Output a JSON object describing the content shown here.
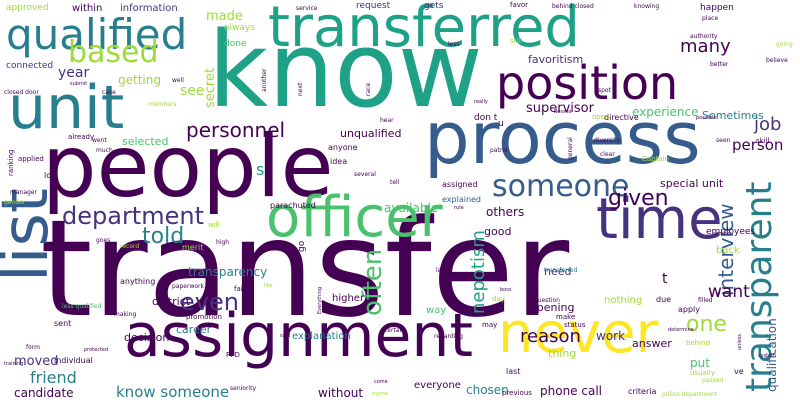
{
  "palette": {
    "dark_purple": "#440154",
    "indigo": "#46327e",
    "blue": "#365c8d",
    "teal_blue": "#277f8e",
    "teal": "#1fa187",
    "green": "#4ac16d",
    "light_green": "#a0da39",
    "yellow": "#fde725"
  },
  "words": [
    {
      "text": "transfer",
      "color": "#440154"
    },
    {
      "text": "know",
      "color": "#1fa187"
    },
    {
      "text": "people",
      "color": "#440154"
    },
    {
      "text": "process",
      "color": "#365c8d"
    },
    {
      "text": "transferred",
      "color": "#1fa187"
    },
    {
      "text": "assignment",
      "color": "#440154"
    },
    {
      "text": "unit",
      "color": "#277f8e"
    },
    {
      "text": "position",
      "color": "#440154"
    },
    {
      "text": "list",
      "color": "#365c8d"
    },
    {
      "text": "officer",
      "color": "#4ac16d"
    },
    {
      "text": "never",
      "color": "#fde725"
    },
    {
      "text": "time",
      "color": "#46327e"
    },
    {
      "text": "qualified",
      "color": "#277f8e"
    },
    {
      "text": "transparent",
      "color": "#277f8e"
    },
    {
      "text": "someone",
      "color": "#365c8d"
    },
    {
      "text": "based",
      "color": "#a0da39"
    },
    {
      "text": "department",
      "color": "#46327e"
    },
    {
      "text": "personnel",
      "color": "#440154"
    },
    {
      "text": "given",
      "color": "#440154"
    },
    {
      "text": "even",
      "color": "#46327e"
    },
    {
      "text": "one",
      "color": "#a0da39"
    },
    {
      "text": "told",
      "color": "#277f8e"
    },
    {
      "text": "interview",
      "color": "#365c8d"
    },
    {
      "text": "often",
      "color": "#4ac16d"
    },
    {
      "text": "nepotism",
      "color": "#1fa187"
    },
    {
      "text": "reason",
      "color": "#440154"
    },
    {
      "text": "many",
      "color": "#440154"
    },
    {
      "text": "job",
      "color": "#46327e"
    },
    {
      "text": "want",
      "color": "#440154"
    },
    {
      "text": "person",
      "color": "#440154"
    },
    {
      "text": "friend",
      "color": "#277f8e"
    },
    {
      "text": "know someone",
      "color": "#277f8e"
    },
    {
      "text": "year",
      "color": "#46327e"
    },
    {
      "text": "see",
      "color": "#a0da39"
    },
    {
      "text": "made",
      "color": "#a0da39"
    },
    {
      "text": "secret",
      "color": "#a0da39"
    },
    {
      "text": "supervisor",
      "color": "#440154"
    },
    {
      "text": "experience",
      "color": "#4ac16d"
    },
    {
      "text": "transparency",
      "color": "#277f8e"
    },
    {
      "text": "moved",
      "color": "#46327e"
    },
    {
      "text": "candidate",
      "color": "#440154"
    },
    {
      "text": "without",
      "color": "#440154"
    },
    {
      "text": "put",
      "color": "#4ac16d"
    },
    {
      "text": "work",
      "color": "#46327e"
    },
    {
      "text": "chosen",
      "color": "#277f8e"
    },
    {
      "text": "phone call",
      "color": "#440154"
    },
    {
      "text": "qualification",
      "color": "#365c8d"
    },
    {
      "text": "available",
      "color": "#4ac16d"
    },
    {
      "text": "others",
      "color": "#440154"
    },
    {
      "text": "getting",
      "color": "#a0da39"
    },
    {
      "text": "unqualified",
      "color": "#440154"
    },
    {
      "text": "selected",
      "color": "#4ac16d"
    },
    {
      "text": "special unit",
      "color": "#440154"
    },
    {
      "text": "Sometimes",
      "color": "#277f8e"
    },
    {
      "text": "favoritism",
      "color": "#46327e"
    },
    {
      "text": "opening",
      "color": "#440154"
    },
    {
      "text": "need",
      "color": "#46327e"
    },
    {
      "text": "good",
      "color": "#440154"
    },
    {
      "text": "career",
      "color": "#277f8e"
    },
    {
      "text": "decision",
      "color": "#440154"
    },
    {
      "text": "district",
      "color": "#440154"
    },
    {
      "text": "thing",
      "color": "#a0da39"
    },
    {
      "text": "answer",
      "color": "#440154"
    },
    {
      "text": "everyone",
      "color": "#440154"
    },
    {
      "text": "higher",
      "color": "#440154"
    },
    {
      "text": "explanation",
      "color": "#277f8e"
    },
    {
      "text": "nothing",
      "color": "#a0da39"
    },
    {
      "text": "way",
      "color": "#4ac16d"
    },
    {
      "text": "back",
      "color": "#a0da39"
    },
    {
      "text": "information",
      "color": "#46327e"
    },
    {
      "text": "within",
      "color": "#440154"
    },
    {
      "text": "approved",
      "color": "#a0da39"
    },
    {
      "text": "request",
      "color": "#46327e"
    },
    {
      "text": "gets",
      "color": "#46327e"
    },
    {
      "text": "happen",
      "color": "#440154"
    },
    {
      "text": "always",
      "color": "#a0da39"
    },
    {
      "text": "done",
      "color": "#4ac16d"
    },
    {
      "text": "connected",
      "color": "#46327e"
    },
    {
      "text": "employees",
      "color": "#440154"
    },
    {
      "text": "idea",
      "color": "#440154"
    },
    {
      "text": "anyone",
      "color": "#440154"
    },
    {
      "text": "assigned",
      "color": "#440154"
    },
    {
      "text": "explained",
      "color": "#365c8d"
    },
    {
      "text": "merit",
      "color": "#a0da39"
    },
    {
      "text": "parachuted",
      "color": "#440154"
    },
    {
      "text": "transferred",
      "color": "#277f8e"
    },
    {
      "text": "fair",
      "color": "#440154"
    },
    {
      "text": "promotion",
      "color": "#440154"
    },
    {
      "text": "anything",
      "color": "#440154"
    },
    {
      "text": "right",
      "color": "#440154"
    },
    {
      "text": "sent",
      "color": "#440154"
    },
    {
      "text": "individual",
      "color": "#440154"
    },
    {
      "text": "PPD",
      "color": "#440154"
    },
    {
      "text": "last",
      "color": "#440154"
    },
    {
      "text": "usually",
      "color": "#a0da39"
    },
    {
      "text": "ve",
      "color": "#440154"
    },
    {
      "text": "apply",
      "color": "#440154"
    },
    {
      "text": "due",
      "color": "#440154"
    },
    {
      "text": "make",
      "color": "#440154"
    },
    {
      "text": "status",
      "color": "#440154"
    },
    {
      "text": "criteria",
      "color": "#440154"
    },
    {
      "text": "previous",
      "color": "#440154"
    },
    {
      "text": "seniority",
      "color": "#440154"
    },
    {
      "text": "regarding",
      "color": "#440154"
    },
    {
      "text": "question",
      "color": "#440154"
    },
    {
      "text": "day",
      "color": "#a0da39"
    },
    {
      "text": "may",
      "color": "#440154"
    },
    {
      "text": "behind",
      "color": "#a0da39"
    },
    {
      "text": "passed",
      "color": "#a0da39"
    },
    {
      "text": "filled",
      "color": "#440154"
    },
    {
      "text": "performance",
      "color": "#440154"
    },
    {
      "text": "certain",
      "color": "#440154"
    },
    {
      "text": "paperwork",
      "color": "#440154"
    },
    {
      "text": "making",
      "color": "#440154"
    },
    {
      "text": "less qualified",
      "color": "#4ac16d"
    },
    {
      "text": "form",
      "color": "#440154"
    },
    {
      "text": "lot",
      "color": "#440154"
    },
    {
      "text": "ranking",
      "color": "#440154"
    },
    {
      "text": "applied",
      "color": "#440154"
    },
    {
      "text": "went",
      "color": "#440154"
    },
    {
      "text": "much",
      "color": "#440154"
    },
    {
      "text": "already",
      "color": "#440154"
    },
    {
      "text": "manager",
      "color": "#440154"
    },
    {
      "text": "gender",
      "color": "#a0da39"
    },
    {
      "text": "closed door",
      "color": "#440154"
    },
    {
      "text": "case",
      "color": "#440154"
    },
    {
      "text": "members",
      "color": "#a0da39"
    },
    {
      "text": "well",
      "color": "#440154"
    },
    {
      "text": "service",
      "color": "#440154"
    },
    {
      "text": "authority",
      "color": "#440154"
    },
    {
      "text": "knowing",
      "color": "#440154"
    },
    {
      "text": "behind closed",
      "color": "#440154"
    },
    {
      "text": "favor",
      "color": "#440154"
    },
    {
      "text": "still",
      "color": "#a0da39"
    },
    {
      "text": "less",
      "color": "#440154"
    },
    {
      "text": "race",
      "color": "#440154"
    },
    {
      "text": "next",
      "color": "#440154"
    },
    {
      "text": "hear",
      "color": "#440154"
    },
    {
      "text": "another",
      "color": "#440154"
    },
    {
      "text": "directive",
      "color": "#440154"
    },
    {
      "text": "don t",
      "color": "#440154"
    },
    {
      "text": "open",
      "color": "#a0da39"
    },
    {
      "text": "patrol",
      "color": "#440154"
    },
    {
      "text": "diversity",
      "color": "#440154"
    },
    {
      "text": "general",
      "color": "#440154"
    },
    {
      "text": "clear",
      "color": "#440154"
    },
    {
      "text": "Captain",
      "color": "#a0da39"
    },
    {
      "text": "skill",
      "color": "#440154"
    },
    {
      "text": "seen",
      "color": "#440154"
    },
    {
      "text": "better",
      "color": "#440154"
    },
    {
      "text": "place",
      "color": "#440154"
    },
    {
      "text": "believe",
      "color": "#440154"
    },
    {
      "text": "going",
      "color": "#a0da39"
    },
    {
      "text": "spot",
      "color": "#440154"
    },
    {
      "text": "Bosses",
      "color": "#440154"
    },
    {
      "text": "really",
      "color": "#440154"
    },
    {
      "text": "tell",
      "color": "#440154"
    },
    {
      "text": "several",
      "color": "#440154"
    },
    {
      "text": "choose",
      "color": "#440154"
    },
    {
      "text": "lack",
      "color": "#440154"
    },
    {
      "text": "rule",
      "color": "#440154"
    },
    {
      "text": "boss",
      "color": "#440154"
    },
    {
      "text": "goes",
      "color": "#440154"
    },
    {
      "text": "record",
      "color": "#a0da39"
    },
    {
      "text": "high",
      "color": "#440154"
    },
    {
      "text": "will",
      "color": "#a0da39"
    },
    {
      "text": "possible",
      "color": "#440154"
    },
    {
      "text": "number",
      "color": "#440154"
    },
    {
      "text": "determine",
      "color": "#440154"
    },
    {
      "text": "system",
      "color": "#440154"
    },
    {
      "text": "unless",
      "color": "#440154"
    },
    {
      "text": "police department",
      "color": "#a0da39"
    },
    {
      "text": "training",
      "color": "#440154"
    },
    {
      "text": "protected",
      "color": "#440154"
    },
    {
      "text": "rhyme",
      "color": "#a0da39"
    },
    {
      "text": "come",
      "color": "#440154"
    },
    {
      "text": "said",
      "color": "#440154"
    },
    {
      "text": "Everything",
      "color": "#440154"
    },
    {
      "text": "like",
      "color": "#a0da39"
    },
    {
      "text": "submit",
      "color": "#440154"
    },
    {
      "text": "u",
      "color": "#440154"
    },
    {
      "text": "s",
      "color": "#1fa187"
    },
    {
      "text": "t",
      "color": "#440154"
    },
    {
      "text": "go",
      "color": "#440154"
    }
  ]
}
